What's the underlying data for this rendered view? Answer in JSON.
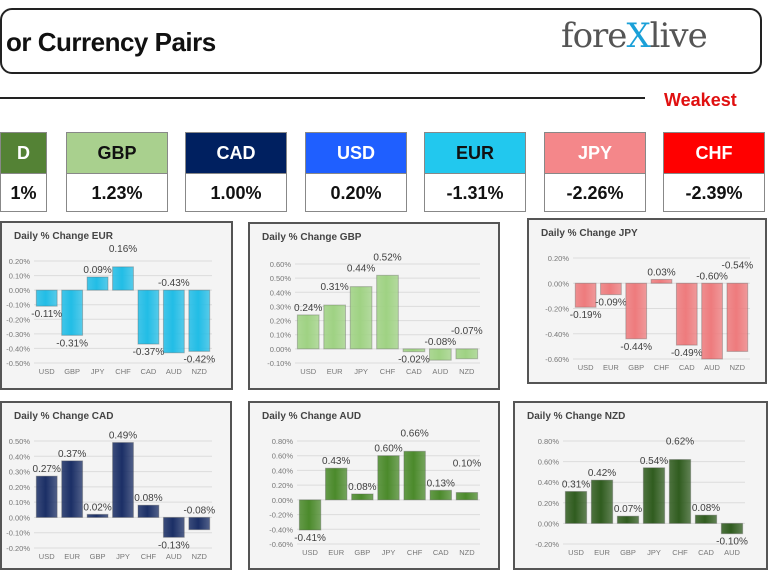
{
  "header": {
    "title": "or Currency Pairs",
    "logo": "forexlive",
    "weakest_label": "Weakest"
  },
  "cards": [
    {
      "currency": "D",
      "change": "1%",
      "color": "#548235",
      "text_color": "#ffffff"
    },
    {
      "currency": "GBP",
      "change": "1.23%",
      "color": "#a9d08e",
      "text_color": "#111111"
    },
    {
      "currency": "CAD",
      "change": "1.00%",
      "color": "#002060",
      "text_color": "#ffffff"
    },
    {
      "currency": "USD",
      "change": "0.20%",
      "color": "#1f5fff",
      "text_color": "#ffffff"
    },
    {
      "currency": "EUR",
      "change": "-1.31%",
      "color": "#22c8ee",
      "text_color": "#111111"
    },
    {
      "currency": "JPY",
      "change": "-2.26%",
      "color": "#f4878a",
      "text_color": "#ffffff"
    },
    {
      "currency": "CHF",
      "change": "-2.39%",
      "color": "#ff0000",
      "text_color": "#ffffff"
    }
  ],
  "chart_data": [
    {
      "type": "bar",
      "title": "Daily % Change EUR",
      "categories": [
        "USD",
        "GBP",
        "JPY",
        "CHF",
        "CAD",
        "AUD",
        "NZD"
      ],
      "values": [
        -0.11,
        -0.31,
        0.09,
        0.16,
        -0.37,
        -0.43,
        -0.42
      ],
      "labels": [
        "-0.11%",
        "-0.31%",
        "0.09%",
        "0.16%",
        "-0.37%",
        "-0.43%",
        "-0.42%"
      ],
      "ylim": [
        -0.5,
        0.2
      ],
      "ticks": [
        "0.20%",
        "0.10%",
        "0.00%",
        "-0.10%",
        "-0.20%",
        "-0.30%",
        "-0.40%",
        "-0.50%"
      ],
      "color": "#22bde6",
      "grid": true
    },
    {
      "type": "bar",
      "title": "Daily % Change GBP",
      "categories": [
        "USD",
        "EUR",
        "JPY",
        "CHF",
        "CAD",
        "AUD",
        "NZD"
      ],
      "values": [
        0.24,
        0.31,
        0.44,
        0.52,
        -0.02,
        -0.08,
        -0.07
      ],
      "labels": [
        "0.24%",
        "0.31%",
        "0.44%",
        "0.52%",
        "-0.02%",
        "-0.08%",
        "-0.07%"
      ],
      "ylim": [
        -0.1,
        0.6
      ],
      "ticks": [
        "0.60%",
        "0.50%",
        "0.40%",
        "0.30%",
        "0.20%",
        "0.10%",
        "0.00%",
        "-0.10%"
      ],
      "color": "#9fd283",
      "grid": true
    },
    {
      "type": "bar",
      "title": "Daily % Change JPY",
      "categories": [
        "USD",
        "EUR",
        "GBP",
        "CHF",
        "CAD",
        "AUD",
        "NZD"
      ],
      "values": [
        -0.19,
        -0.09,
        -0.44,
        0.03,
        -0.49,
        -0.6,
        -0.54
      ],
      "labels": [
        "-0.19%",
        "-0.09%",
        "-0.44%",
        "0.03%",
        "-0.49%",
        "-0.60%",
        "-0.54%"
      ],
      "ylim": [
        -0.6,
        0.2
      ],
      "ticks": [
        "0.20%",
        "0.00%",
        "-0.20%",
        "-0.40%",
        "-0.60%"
      ],
      "color": "#ee7b7d",
      "grid": true
    },
    {
      "type": "bar",
      "title": "Daily % Change CAD",
      "categories": [
        "USD",
        "EUR",
        "GBP",
        "JPY",
        "CHF",
        "AUD",
        "NZD"
      ],
      "values": [
        0.27,
        0.37,
        0.02,
        0.49,
        0.08,
        -0.13,
        -0.08
      ],
      "labels": [
        "0.27%",
        "0.37%",
        "0.02%",
        "0.49%",
        "0.08%",
        "-0.13%",
        "-0.08%"
      ],
      "ylim": [
        -0.2,
        0.5
      ],
      "ticks": [
        "0.50%",
        "0.40%",
        "0.30%",
        "0.20%",
        "0.10%",
        "0.00%",
        "-0.10%",
        "-0.20%"
      ],
      "color": "#1b2f66",
      "grid": true
    },
    {
      "type": "bar",
      "title": "Daily % Change AUD",
      "categories": [
        "USD",
        "EUR",
        "GBP",
        "JPY",
        "CHF",
        "CAD",
        "NZD"
      ],
      "values": [
        -0.41,
        0.43,
        0.08,
        0.6,
        0.66,
        0.13,
        0.1
      ],
      "labels": [
        "-0.41%",
        "0.43%",
        "0.08%",
        "0.60%",
        "0.66%",
        "0.13%",
        "0.10%"
      ],
      "ylim": [
        -0.6,
        0.8
      ],
      "ticks": [
        "0.80%",
        "0.60%",
        "0.40%",
        "0.20%",
        "0.00%",
        "-0.20%",
        "-0.40%",
        "-0.60%"
      ],
      "color": "#4b8a2b",
      "grid": true
    },
    {
      "type": "bar",
      "title": "Daily % Change NZD",
      "categories": [
        "USD",
        "EUR",
        "GBP",
        "JPY",
        "CHF",
        "CAD",
        "AUD"
      ],
      "values": [
        0.31,
        0.42,
        0.07,
        0.54,
        0.62,
        0.08,
        -0.1
      ],
      "labels": [
        "0.31%",
        "0.42%",
        "0.07%",
        "0.54%",
        "0.62%",
        "0.08%",
        "-0.10%"
      ],
      "ylim": [
        -0.2,
        0.8
      ],
      "ticks": [
        "0.80%",
        "0.60%",
        "0.40%",
        "0.20%",
        "0.00%",
        "-0.20%"
      ],
      "color": "#305c1f",
      "grid": true
    }
  ]
}
